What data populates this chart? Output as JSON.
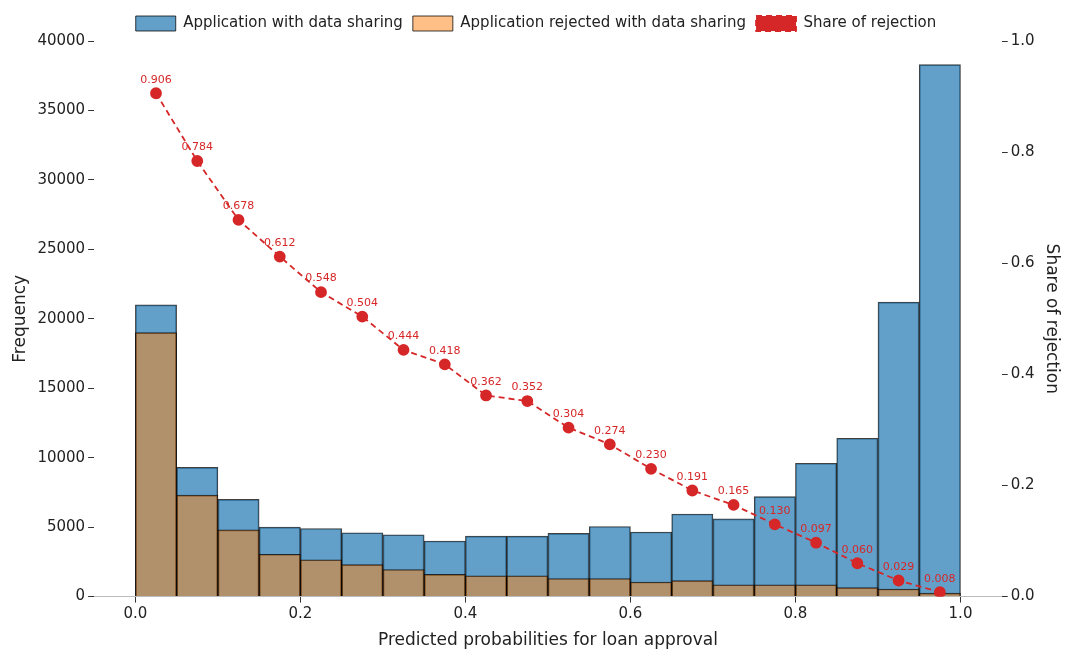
{
  "chart_data": {
    "type": "histogram",
    "xlabel": "Predicted probabilities for loan approval",
    "ylabel": "Frequency",
    "y2label": "Share of rejection",
    "bins": [
      0,
      0.05,
      0.1,
      0.15,
      0.2,
      0.25,
      0.3,
      0.35,
      0.4,
      0.45,
      0.5,
      0.55,
      0.6,
      0.65,
      0.7,
      0.75,
      0.8,
      0.85,
      0.9,
      0.95,
      1.0
    ],
    "series": [
      {
        "name": "Application with data sharing",
        "color": "#1f77b4",
        "values": [
          21000,
          9300,
          7000,
          5000,
          4900,
          4600,
          4450,
          4000,
          4350,
          4350,
          4550,
          5050,
          4650,
          5950,
          5600,
          7200,
          9600,
          11400,
          21200,
          38300
        ]
      },
      {
        "name": "Application rejected with data sharing",
        "color": "#ff7f0e",
        "values": [
          19000,
          7300,
          4800,
          3050,
          2650,
          2300,
          1950,
          1600,
          1500,
          1500,
          1300,
          1300,
          1050,
          1150,
          850,
          850,
          850,
          650,
          550,
          250
        ]
      },
      {
        "name": "Share of rejection",
        "type": "line",
        "axis": "y2",
        "color": "#d62728",
        "marker": "circle",
        "line_style": "dashed",
        "x": [
          0.025,
          0.075,
          0.125,
          0.175,
          0.225,
          0.275,
          0.325,
          0.375,
          0.425,
          0.475,
          0.525,
          0.575,
          0.625,
          0.675,
          0.725,
          0.775,
          0.825,
          0.875,
          0.925,
          0.975
        ],
        "values": [
          0.906,
          0.784,
          0.678,
          0.612,
          0.548,
          0.504,
          0.444,
          0.418,
          0.362,
          0.352,
          0.304,
          0.274,
          0.23,
          0.191,
          0.165,
          0.13,
          0.097,
          0.06,
          0.029,
          0.008
        ],
        "value_labels": [
          "0.906",
          "0.784",
          "0.678",
          "0.612",
          "0.548",
          "0.504",
          "0.444",
          "0.418",
          "0.362",
          "0.352",
          "0.304",
          "0.274",
          "0.230",
          "0.191",
          "0.165",
          "0.130",
          "0.097",
          "0.060",
          "0.029",
          "0.008"
        ]
      }
    ],
    "xlim": [
      -0.05,
      1.05
    ],
    "xticks": [
      {
        "value": 0,
        "label": "0.0"
      },
      {
        "value": 0.2,
        "label": "0.2"
      },
      {
        "value": 0.4,
        "label": "0.4"
      },
      {
        "value": 0.6,
        "label": "0.6"
      },
      {
        "value": 0.8,
        "label": "0.8"
      },
      {
        "value": 1,
        "label": "1.0"
      }
    ],
    "ylim": [
      0,
      40000
    ],
    "yticks": [
      0,
      5000,
      10000,
      15000,
      20000,
      25000,
      30000,
      35000,
      40000
    ],
    "y2lim": [
      0,
      1
    ],
    "y2ticks": [
      {
        "value": 0,
        "label": "0.0"
      },
      {
        "value": 0.2,
        "label": "0.2"
      },
      {
        "value": 0.4,
        "label": "0.4"
      },
      {
        "value": 0.6,
        "label": "0.6"
      },
      {
        "value": 0.8,
        "label": "0.8"
      },
      {
        "value": 1,
        "label": "1.0"
      }
    ],
    "grid": false,
    "legend": "top"
  }
}
